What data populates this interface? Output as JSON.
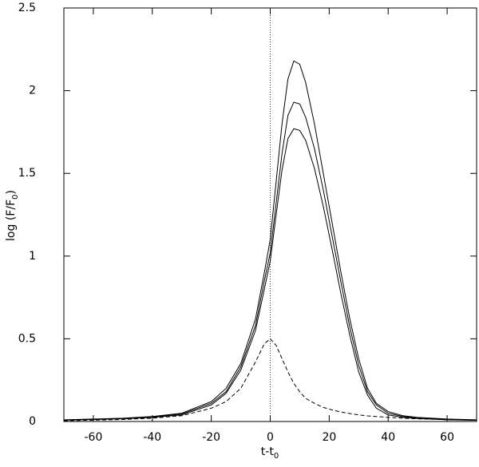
{
  "chart_data": {
    "type": "line",
    "x_label": {
      "main": "t-t",
      "sub": "0"
    },
    "y_label": {
      "main": "log (F/F",
      "sub": "0",
      "end": ")"
    },
    "x": [
      -70,
      -60,
      -50,
      -40,
      -30,
      -20,
      -15,
      -10,
      -5,
      -2,
      0,
      2,
      4,
      6,
      8,
      10,
      12,
      15,
      18,
      21,
      24,
      27,
      30,
      33,
      36,
      40,
      45,
      50,
      60,
      70
    ],
    "series": [
      {
        "color": "#000000",
        "style": "solid",
        "values": [
          0.01,
          0.015,
          0.02,
          0.03,
          0.05,
          0.12,
          0.2,
          0.35,
          0.62,
          0.9,
          1.1,
          1.45,
          1.8,
          2.07,
          2.18,
          2.16,
          2.05,
          1.8,
          1.5,
          1.2,
          0.9,
          0.62,
          0.38,
          0.2,
          0.11,
          0.06,
          0.035,
          0.025,
          0.015,
          0.01
        ]
      },
      {
        "color": "#000000",
        "style": "solid",
        "values": [
          0.009,
          0.013,
          0.018,
          0.027,
          0.045,
          0.11,
          0.18,
          0.33,
          0.58,
          0.85,
          1.02,
          1.32,
          1.62,
          1.85,
          1.93,
          1.92,
          1.84,
          1.65,
          1.4,
          1.12,
          0.84,
          0.57,
          0.34,
          0.18,
          0.1,
          0.05,
          0.03,
          0.02,
          0.012,
          0.008
        ]
      },
      {
        "color": "#000000",
        "style": "solid",
        "values": [
          0.008,
          0.012,
          0.016,
          0.025,
          0.04,
          0.1,
          0.17,
          0.31,
          0.55,
          0.8,
          0.97,
          1.25,
          1.52,
          1.71,
          1.77,
          1.76,
          1.7,
          1.53,
          1.3,
          1.04,
          0.77,
          0.52,
          0.3,
          0.16,
          0.08,
          0.04,
          0.025,
          0.018,
          0.01,
          0.007
        ]
      },
      {
        "color": "#000000",
        "style": "dashed",
        "values": [
          0.005,
          0.008,
          0.012,
          0.02,
          0.035,
          0.08,
          0.12,
          0.2,
          0.36,
          0.47,
          0.5,
          0.46,
          0.38,
          0.3,
          0.23,
          0.18,
          0.14,
          0.11,
          0.085,
          0.07,
          0.057,
          0.048,
          0.04,
          0.034,
          0.03,
          0.025,
          0.02,
          0.016,
          0.011,
          0.008
        ]
      }
    ],
    "vline": 0,
    "xlim": [
      -70,
      70
    ],
    "xticks": [
      -60,
      -40,
      -20,
      0,
      20,
      40,
      60
    ],
    "ylim": [
      0,
      2.5
    ],
    "yticks": [
      0,
      0.5,
      1,
      1.5,
      2,
      2.5
    ]
  }
}
